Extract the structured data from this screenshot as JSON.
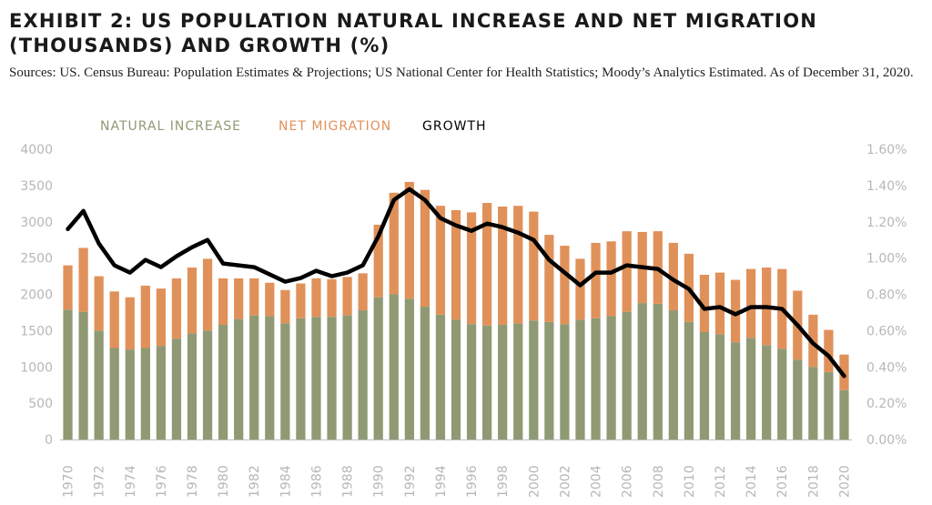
{
  "chart_data": {
    "type": "bar",
    "title": "EXHIBIT 2: US POPULATION NATURAL INCREASE AND NET MIGRATION (THOUSANDS) AND GROWTH (%)",
    "subtitle": "Sources: US. Census Bureau: Population Estimates & Projections; US National Center for Health Statistics; Moody’s Analytics Estimated. As of December 31, 2020.",
    "stacked": true,
    "legend_position": "top-left",
    "grid": false,
    "categories": [
      "1970",
      "1971",
      "1972",
      "1973",
      "1974",
      "1975",
      "1976",
      "1977",
      "1978",
      "1979",
      "1980",
      "1981",
      "1982",
      "1983",
      "1984",
      "1985",
      "1986",
      "1987",
      "1988",
      "1989",
      "1990",
      "1991",
      "1992",
      "1993",
      "1994",
      "1995",
      "1996",
      "1997",
      "1998",
      "1999",
      "2000",
      "2001",
      "2002",
      "2003",
      "2004",
      "2005",
      "2006",
      "2007",
      "2008",
      "2009",
      "2010",
      "2011",
      "2012",
      "2013",
      "2014",
      "2015",
      "2016",
      "2017",
      "2018",
      "2019",
      "2020"
    ],
    "x_tick_labels": [
      "1970",
      "1972",
      "1974",
      "1976",
      "1978",
      "1980",
      "1982",
      "1984",
      "1986",
      "1988",
      "1990",
      "1992",
      "1994",
      "1996",
      "1998",
      "2000",
      "2002",
      "2004",
      "2006",
      "2008",
      "2010",
      "2012",
      "2014",
      "2016",
      "2018",
      "2020"
    ],
    "series": [
      {
        "name": "NATURAL INCREASE",
        "color": "#8f9a74",
        "axis": "left",
        "values": [
          1790,
          1760,
          1500,
          1260,
          1240,
          1260,
          1290,
          1390,
          1460,
          1500,
          1580,
          1660,
          1710,
          1700,
          1600,
          1670,
          1690,
          1690,
          1710,
          1780,
          1960,
          2000,
          1940,
          1830,
          1720,
          1650,
          1590,
          1570,
          1580,
          1600,
          1640,
          1620,
          1590,
          1650,
          1670,
          1700,
          1760,
          1880,
          1870,
          1780,
          1620,
          1480,
          1450,
          1340,
          1400,
          1300,
          1250,
          1100,
          1000,
          930,
          680
        ]
      },
      {
        "name": "NET MIGRATION",
        "color": "#e0915a",
        "axis": "left",
        "values": [
          610,
          880,
          750,
          780,
          720,
          860,
          790,
          830,
          910,
          990,
          640,
          560,
          510,
          460,
          460,
          480,
          530,
          520,
          530,
          510,
          1000,
          1400,
          1610,
          1610,
          1500,
          1510,
          1540,
          1690,
          1630,
          1620,
          1500,
          1200,
          1080,
          840,
          1040,
          1030,
          1110,
          980,
          1000,
          930,
          940,
          790,
          850,
          860,
          950,
          1070,
          1100,
          950,
          720,
          580,
          490
        ]
      },
      {
        "name": "GROWTH",
        "color": "#000000",
        "axis": "right",
        "type": "line",
        "values": [
          1.16,
          1.26,
          1.08,
          0.96,
          0.92,
          0.99,
          0.95,
          1.01,
          1.06,
          1.1,
          0.97,
          0.96,
          0.95,
          0.91,
          0.87,
          0.89,
          0.93,
          0.9,
          0.92,
          0.96,
          1.12,
          1.32,
          1.38,
          1.32,
          1.22,
          1.18,
          1.15,
          1.19,
          1.17,
          1.14,
          1.1,
          0.99,
          0.92,
          0.85,
          0.92,
          0.92,
          0.96,
          0.95,
          0.94,
          0.88,
          0.83,
          0.72,
          0.73,
          0.69,
          0.73,
          0.73,
          0.72,
          0.63,
          0.53,
          0.46,
          0.35
        ]
      }
    ],
    "ylim": [
      0,
      4000
    ],
    "y_ticks": [
      "0",
      "500",
      "1000",
      "1500",
      "2000",
      "2500",
      "3000",
      "3500",
      "4000"
    ],
    "y2lim": [
      0,
      1.6
    ],
    "y2_ticks": [
      "0.00%",
      "0.20%",
      "0.40%",
      "0.60%",
      "0.80%",
      "1.00%",
      "1.20%",
      "1.40%",
      "1.60%"
    ],
    "colors": {
      "tick_text": "#b7b7b7",
      "axis_line": "#bdbdbd"
    }
  }
}
